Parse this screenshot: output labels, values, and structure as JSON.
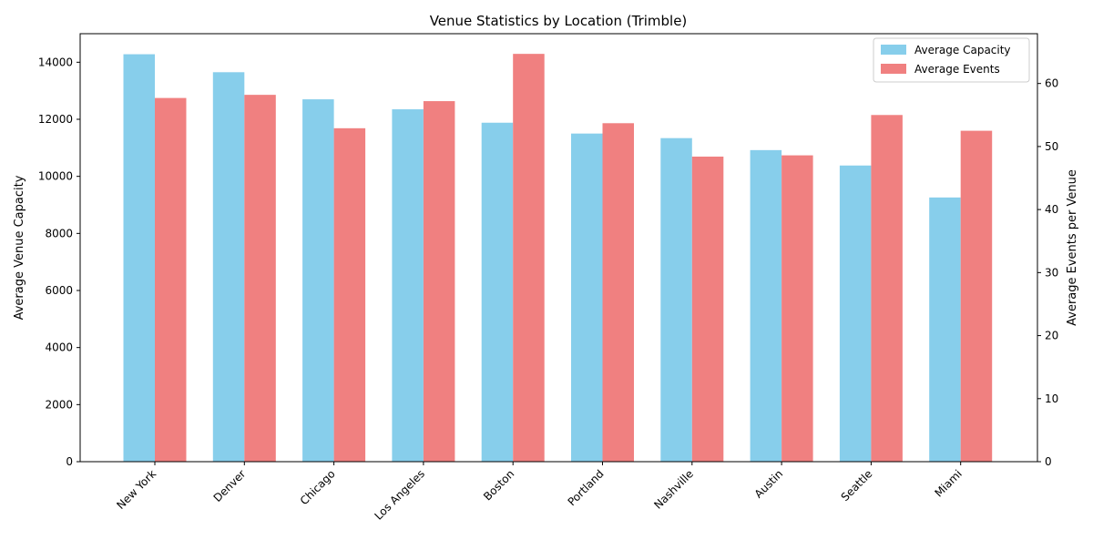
{
  "chart_data": {
    "type": "bar",
    "title": "Venue Statistics by Location (Trimble)",
    "xlabel": "",
    "ylabel": "Average Venue Capacity",
    "y2label": "Average Events per Venue",
    "categories": [
      "New York",
      "Denver",
      "Chicago",
      "Los Angeles",
      "Boston",
      "Portland",
      "Nashville",
      "Austin",
      "Seattle",
      "Miami"
    ],
    "series": [
      {
        "name": "Average Capacity",
        "axis": "left",
        "color": "#87ceeb",
        "values": [
          14280,
          13650,
          12700,
          12350,
          11880,
          11500,
          11340,
          10920,
          10380,
          9260
        ]
      },
      {
        "name": "Average Events",
        "axis": "right",
        "color": "#f08080",
        "values": [
          57.7,
          58.2,
          52.9,
          57.2,
          64.7,
          53.7,
          48.4,
          48.6,
          55.0,
          52.5
        ]
      }
    ],
    "ylim": [
      0,
      15000
    ],
    "y2lim": [
      0,
      67.9
    ],
    "yticks": [
      0,
      2000,
      4000,
      6000,
      8000,
      10000,
      12000,
      14000
    ],
    "y2ticks": [
      0,
      10,
      20,
      30,
      40,
      50,
      60
    ],
    "legend": "top-right",
    "grid": false
  }
}
